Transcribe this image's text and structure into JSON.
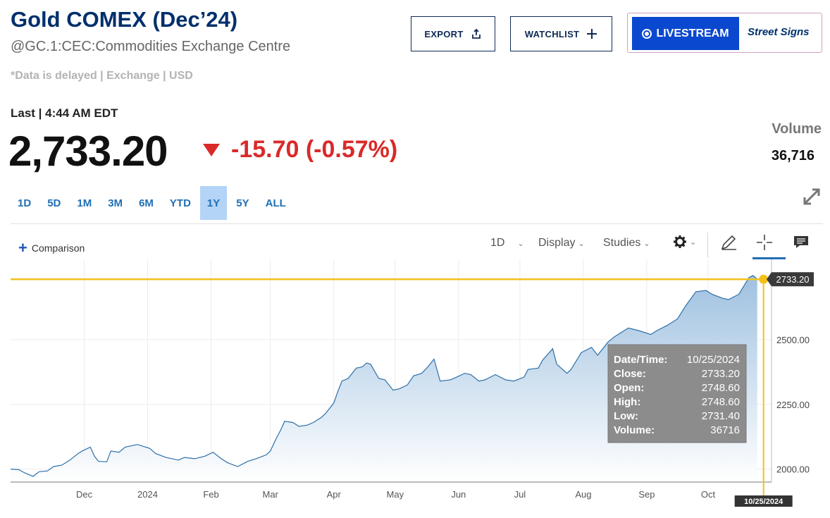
{
  "header": {
    "title": "Gold COMEX (Dec’24)",
    "symbol": "@GC.1:CEC:Commodities Exchange Centre",
    "delayed_note": "*Data is delayed | Exchange | USD"
  },
  "actions": {
    "export_label": "EXPORT",
    "watchlist_label": "WATCHLIST",
    "livestream_label": "LIVESTREAM",
    "street_signs_label": "Street Signs"
  },
  "quote": {
    "last_label": "Last | 4:44 AM EDT",
    "price": "2,733.20",
    "change": "-15.70 (-0.57%)",
    "volume_label": "Volume",
    "volume_value": "36,716"
  },
  "ranges": [
    "1D",
    "5D",
    "1M",
    "3M",
    "6M",
    "YTD",
    "1Y",
    "5Y",
    "ALL"
  ],
  "active_range": "1Y",
  "toolbar": {
    "comparison_label": "Comparison",
    "interval_label": "1D",
    "display_label": "Display",
    "studies_label": "Studies"
  },
  "colors": {
    "brand": "#002f6c",
    "negative": "#d92a2a",
    "link": "#1f6fb5",
    "crosshair": "#f2c21a",
    "series": "#2e6fa7"
  },
  "chart_data": {
    "type": "area",
    "title": "",
    "xlabel": "",
    "ylabel": "",
    "y_ticks": [
      "2000.00",
      "2250.00",
      "2500.00"
    ],
    "y_tick_values": [
      2000,
      2250,
      2500
    ],
    "ylim": [
      1950,
      2810
    ],
    "x_ticks": [
      "Dec",
      "2024",
      "Feb",
      "Mar",
      "Apr",
      "May",
      "Jun",
      "Jul",
      "Aug",
      "Sep",
      "Oct"
    ],
    "x_tick_dates": [
      "2023-12-01",
      "2024-01-01",
      "2024-02-01",
      "2024-03-01",
      "2024-04-01",
      "2024-05-01",
      "2024-06-01",
      "2024-07-01",
      "2024-08-01",
      "2024-09-01",
      "2024-10-01"
    ],
    "xlim": [
      "2023-10-26",
      "2024-11-01"
    ],
    "series": [
      {
        "dates": [
          "2023-10-26",
          "2023-10-30",
          "2023-11-02",
          "2023-11-06",
          "2023-11-09",
          "2023-11-13",
          "2023-11-16",
          "2023-11-20",
          "2023-11-24",
          "2023-11-28",
          "2023-11-30",
          "2023-12-04",
          "2023-12-06",
          "2023-12-08",
          "2023-12-12",
          "2023-12-14",
          "2023-12-18",
          "2023-12-21",
          "2023-12-27",
          "2024-01-02",
          "2024-01-05",
          "2024-01-10",
          "2024-01-16",
          "2024-01-19",
          "2024-01-24",
          "2024-01-29",
          "2024-02-02",
          "2024-02-06",
          "2024-02-09",
          "2024-02-14",
          "2024-02-19",
          "2024-02-23",
          "2024-02-28",
          "2024-03-01",
          "2024-03-04",
          "2024-03-06",
          "2024-03-08",
          "2024-03-12",
          "2024-03-15",
          "2024-03-19",
          "2024-03-22",
          "2024-03-26",
          "2024-03-28",
          "2024-04-01",
          "2024-04-03",
          "2024-04-05",
          "2024-04-08",
          "2024-04-10",
          "2024-04-12",
          "2024-04-15",
          "2024-04-17",
          "2024-04-19",
          "2024-04-23",
          "2024-04-26",
          "2024-04-30",
          "2024-05-03",
          "2024-05-07",
          "2024-05-10",
          "2024-05-14",
          "2024-05-17",
          "2024-05-20",
          "2024-05-23",
          "2024-05-28",
          "2024-05-31",
          "2024-06-04",
          "2024-06-07",
          "2024-06-11",
          "2024-06-14",
          "2024-06-19",
          "2024-06-24",
          "2024-06-28",
          "2024-07-03",
          "2024-07-05",
          "2024-07-10",
          "2024-07-12",
          "2024-07-17",
          "2024-07-19",
          "2024-07-24",
          "2024-07-26",
          "2024-07-31",
          "2024-08-05",
          "2024-08-08",
          "2024-08-13",
          "2024-08-16",
          "2024-08-20",
          "2024-08-23",
          "2024-08-28",
          "2024-09-03",
          "2024-09-06",
          "2024-09-11",
          "2024-09-16",
          "2024-09-20",
          "2024-09-25",
          "2024-09-30",
          "2024-10-03",
          "2024-10-08",
          "2024-10-11",
          "2024-10-16",
          "2024-10-21",
          "2024-10-23",
          "2024-10-25"
        ],
        "values": [
          2000,
          1998,
          1985,
          1972,
          1990,
          1993,
          2010,
          2015,
          2035,
          2060,
          2070,
          2085,
          2050,
          2030,
          2028,
          2070,
          2065,
          2085,
          2095,
          2080,
          2060,
          2045,
          2035,
          2045,
          2040,
          2050,
          2065,
          2040,
          2025,
          2010,
          2030,
          2040,
          2055,
          2070,
          2120,
          2150,
          2185,
          2180,
          2165,
          2170,
          2180,
          2200,
          2215,
          2255,
          2300,
          2340,
          2350,
          2370,
          2390,
          2395,
          2410,
          2405,
          2350,
          2345,
          2305,
          2310,
          2325,
          2360,
          2370,
          2395,
          2425,
          2340,
          2345,
          2355,
          2370,
          2365,
          2340,
          2345,
          2365,
          2345,
          2340,
          2355,
          2385,
          2390,
          2420,
          2465,
          2405,
          2370,
          2385,
          2450,
          2470,
          2440,
          2490,
          2510,
          2530,
          2545,
          2535,
          2520,
          2535,
          2555,
          2580,
          2630,
          2685,
          2690,
          2675,
          2660,
          2655,
          2675,
          2740,
          2748,
          2733.2
        ]
      }
    ],
    "last_value_label": "2733.20",
    "crosshair_date_label": "10/25/2024",
    "tooltip": [
      {
        "label": "Date/Time:",
        "value": "10/25/2024"
      },
      {
        "label": "Close:",
        "value": "2733.20"
      },
      {
        "label": "Open:",
        "value": "2748.60"
      },
      {
        "label": "High:",
        "value": "2748.60"
      },
      {
        "label": "Low:",
        "value": "2731.40"
      },
      {
        "label": "Volume:",
        "value": "36716"
      }
    ]
  }
}
